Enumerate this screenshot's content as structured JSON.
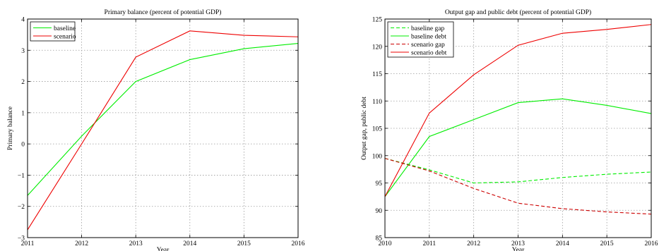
{
  "chart_data": [
    {
      "type": "line",
      "title": "Primary balance (percent of potential GDP)",
      "xlabel": "Year",
      "ylabel": "Primary balance",
      "x": [
        2011,
        2012,
        2013,
        2014,
        2015,
        2016
      ],
      "xlim": [
        2011,
        2016
      ],
      "ylim": [
        -3,
        4
      ],
      "xticks": [
        "2011",
        "2012",
        "2013",
        "2014",
        "2015",
        "2016"
      ],
      "yticks": [
        "−3",
        "−2",
        "−1",
        "0",
        "1",
        "2",
        "3",
        "4"
      ],
      "ytick_values": [
        -3,
        -2,
        -1,
        0,
        1,
        2,
        3,
        4
      ],
      "grid": true,
      "legend_position": "top-left",
      "series": [
        {
          "name": "baseline",
          "color": "#00ee00",
          "dash": "solid",
          "values": [
            -1.65,
            0.25,
            2.0,
            2.7,
            3.05,
            3.22
          ]
        },
        {
          "name": "scenario",
          "color": "#ee0000",
          "dash": "solid",
          "values": [
            -2.75,
            0.0,
            2.78,
            3.62,
            3.48,
            3.43
          ]
        }
      ]
    },
    {
      "type": "line",
      "title": "Output gap and public debt (percent of potential GDP)",
      "xlabel": "Year",
      "ylabel": "Output gap, public debt",
      "x": [
        2010,
        2011,
        2012,
        2013,
        2014,
        2015,
        2016
      ],
      "xlim": [
        2010,
        2016
      ],
      "ylim": [
        85,
        125
      ],
      "xticks": [
        "2010",
        "2011",
        "2012",
        "2013",
        "2014",
        "2015",
        "2016"
      ],
      "yticks": [
        "85",
        "90",
        "95",
        "100",
        "105",
        "110",
        "115",
        "120",
        "125"
      ],
      "ytick_values": [
        85,
        90,
        95,
        100,
        105,
        110,
        115,
        120,
        125
      ],
      "grid": true,
      "legend_position": "top-left",
      "series": [
        {
          "name": "baseline gap",
          "color": "#00ee00",
          "dash": "dashed",
          "values": [
            99.5,
            97.4,
            95.0,
            95.2,
            96.0,
            96.6,
            97.0
          ]
        },
        {
          "name": "baseline debt",
          "color": "#00ee00",
          "dash": "solid",
          "values": [
            92.5,
            103.5,
            106.6,
            109.7,
            110.4,
            109.2,
            107.7
          ]
        },
        {
          "name": "scenario gap",
          "color": "#cc0000",
          "dash": "dashed",
          "values": [
            99.5,
            97.2,
            94.0,
            91.3,
            90.3,
            89.7,
            89.3
          ]
        },
        {
          "name": "scenario debt",
          "color": "#ee0000",
          "dash": "solid",
          "values": [
            92.5,
            107.8,
            114.8,
            120.2,
            122.4,
            123.1,
            124.0
          ]
        }
      ]
    }
  ]
}
